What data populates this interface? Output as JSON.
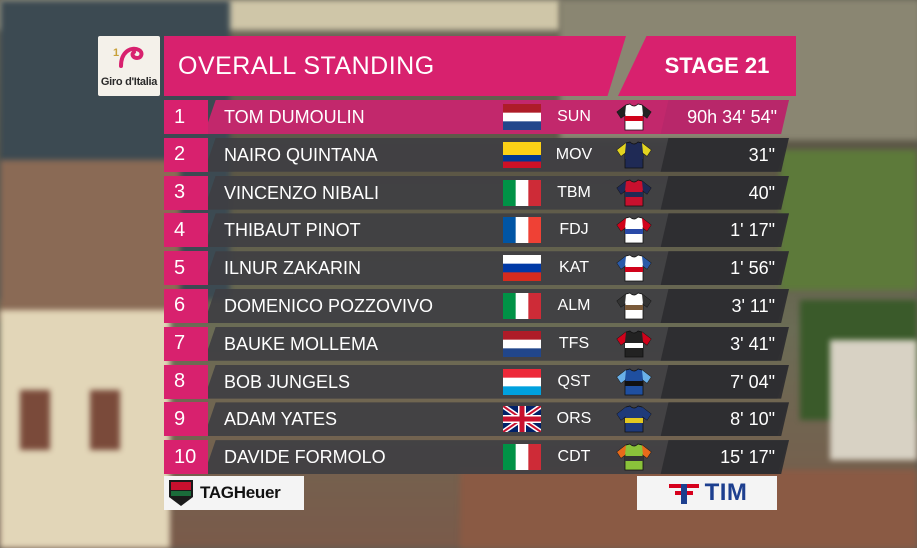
{
  "header": {
    "title": "OVERALL STANDING",
    "stage": "STAGE 21"
  },
  "branding": {
    "logo_text": "Giro d'Italia",
    "accent_color": "#d8216e"
  },
  "standings": [
    {
      "rank": "1",
      "name": "TOM DUMOULIN",
      "flag": "netherlands",
      "team": "SUN",
      "time": "90h 34' 54\""
    },
    {
      "rank": "2",
      "name": "NAIRO QUINTANA",
      "flag": "colombia",
      "team": "MOV",
      "time": "31\""
    },
    {
      "rank": "3",
      "name": "VINCENZO NIBALI",
      "flag": "italy",
      "team": "TBM",
      "time": "40\""
    },
    {
      "rank": "4",
      "name": "THIBAUT PINOT",
      "flag": "france",
      "team": "FDJ",
      "time": "1' 17\""
    },
    {
      "rank": "5",
      "name": "ILNUR ZAKARIN",
      "flag": "russia",
      "team": "KAT",
      "time": "1' 56\""
    },
    {
      "rank": "6",
      "name": "DOMENICO POZZOVIVO",
      "flag": "italy",
      "team": "ALM",
      "time": "3' 11\""
    },
    {
      "rank": "7",
      "name": "BAUKE MOLLEMA",
      "flag": "netherlands",
      "team": "TFS",
      "time": "3' 41\""
    },
    {
      "rank": "8",
      "name": "BOB JUNGELS",
      "flag": "luxembourg",
      "team": "QST",
      "time": "7' 04\""
    },
    {
      "rank": "9",
      "name": "ADAM YATES",
      "flag": "united-kingdom",
      "team": "ORS",
      "time": "8' 10\""
    },
    {
      "rank": "10",
      "name": "DAVIDE FORMOLO",
      "flag": "italy",
      "team": "CDT",
      "time": "15' 17\""
    }
  ],
  "sponsors": {
    "left": "TAGHeuer",
    "right": "TIM"
  }
}
